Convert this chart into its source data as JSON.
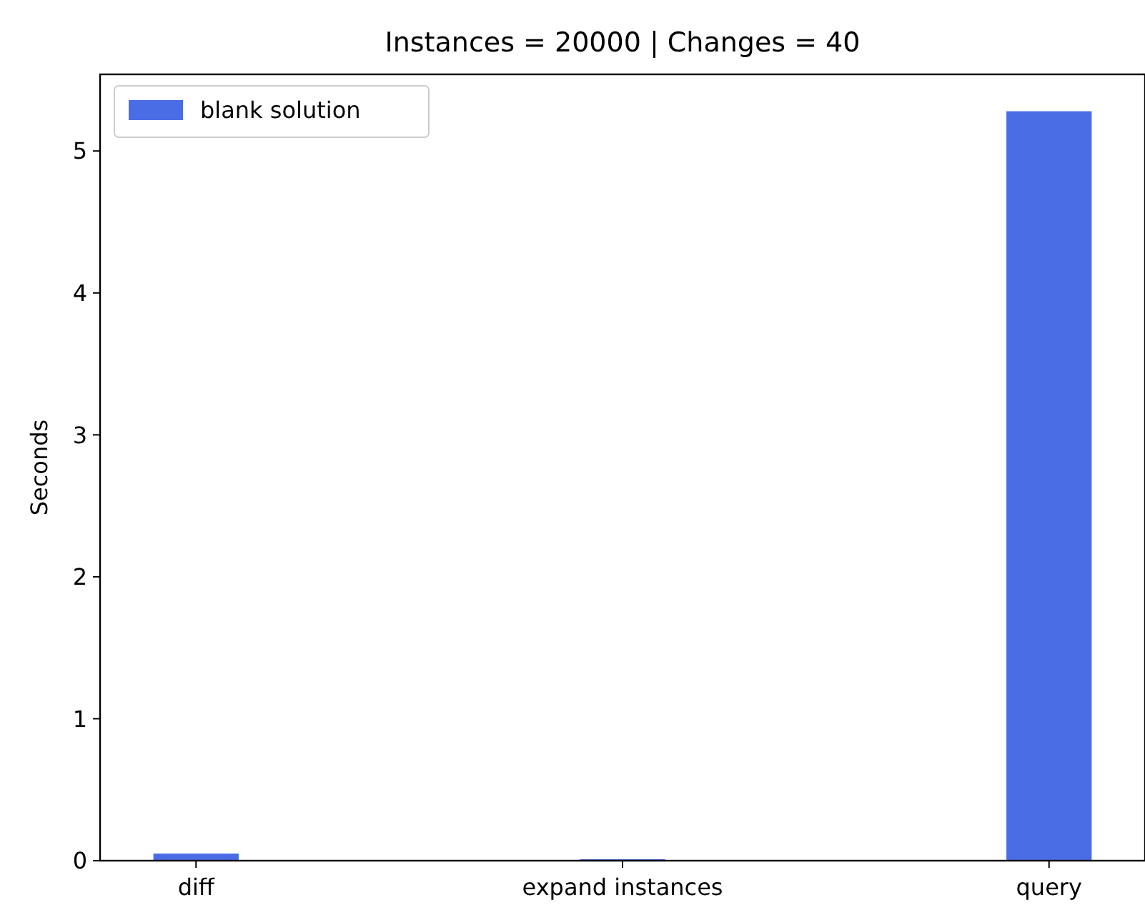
{
  "chart_data": {
    "type": "bar",
    "title": "Instances = 20000 | Changes = 40",
    "ylabel": "Seconds",
    "categories": [
      "diff",
      "expand instances",
      "query"
    ],
    "series": [
      {
        "name": "blank solution",
        "color": "#4a6de5",
        "values": [
          0.05,
          0.01,
          5.28
        ]
      }
    ],
    "ylim": [
      0,
      5.54
    ],
    "yticks": [
      0,
      1,
      2,
      3,
      4,
      5
    ],
    "legend": "top left",
    "grid": false
  }
}
